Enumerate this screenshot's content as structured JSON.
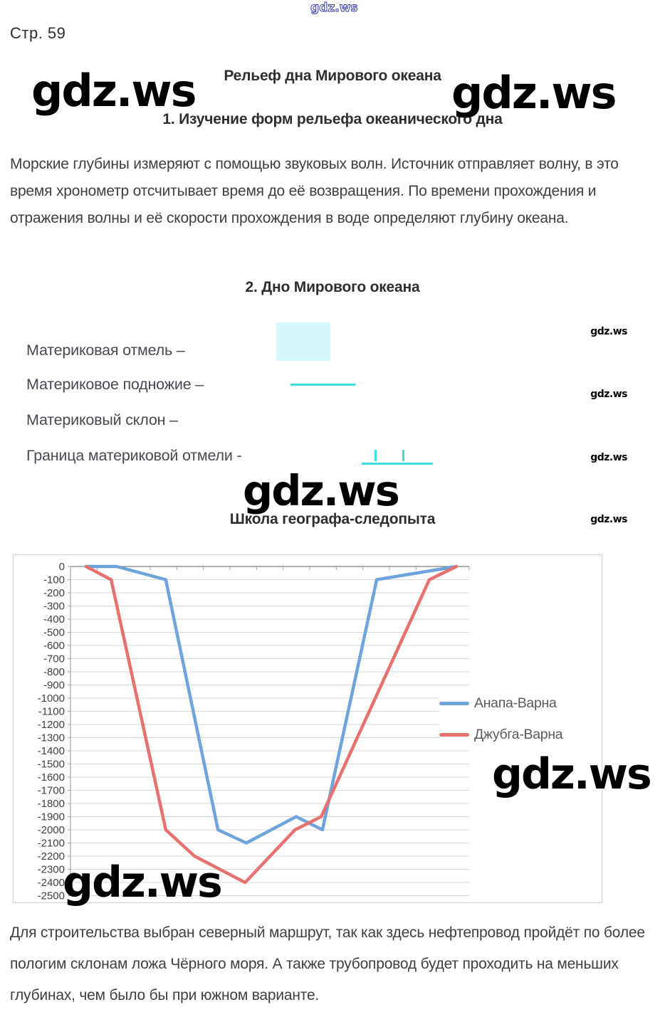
{
  "watermark": {
    "text": "gdz.ws"
  },
  "page": {
    "number_label": "Стр. 59"
  },
  "headings": {
    "title": "Рельеф дна Мирового океана",
    "section1": "1. Изучение форм рельефа океанического дна",
    "section2": "2. Дно Мирового океана",
    "school": "Школа географа-следопыта"
  },
  "intro_paragraph": "Морские глубины измеряют с помощью звуковых волн. Источник отправляет волну, в это время хронометр отсчитывает время до её возвращения. По времени прохождения и отражения волны и её скорости прохождения в воде определяют глубину океана.",
  "ocean_floor_legend": {
    "items": [
      {
        "label": "Материковая отмель –",
        "symbol": "filled-rect"
      },
      {
        "label": "Материковое подножие –",
        "symbol": "solid-line"
      },
      {
        "label": "Материковый склон –",
        "symbol": "none"
      },
      {
        "label": "Граница материковой отмели -",
        "symbol": "line-with-up-ticks"
      }
    ],
    "symbol_colors": {
      "fill": "#d7f6f8",
      "line": "#3edde2"
    }
  },
  "chart_data": {
    "type": "line",
    "title": "",
    "xlabel": "",
    "ylabel": "",
    "ylim": [
      -2500,
      0
    ],
    "yticks": [
      0,
      -100,
      -200,
      -300,
      -400,
      -500,
      -600,
      -700,
      -800,
      -900,
      -1000,
      -1100,
      -1200,
      -1300,
      -1400,
      -1500,
      -1600,
      -1700,
      -1800,
      -1900,
      -2000,
      -2100,
      -2200,
      -2300,
      -2400,
      -2500
    ],
    "x_axis_labels_visible": false,
    "x_unit": "relative distance along route, percent (no tick labels shown)",
    "grid": true,
    "legend_position": "middle-right",
    "series": [
      {
        "name": "Анапа-Варна",
        "color": "#6fa3dc",
        "points": [
          [
            3.9,
            0
          ],
          [
            11.6,
            0
          ],
          [
            23.9,
            -100
          ],
          [
            37.0,
            -2000
          ],
          [
            44.1,
            -2100
          ],
          [
            56.6,
            -1900
          ],
          [
            63.2,
            -2000
          ],
          [
            76.8,
            -100
          ],
          [
            96.8,
            0
          ]
        ]
      },
      {
        "name": "Джубга-Варна",
        "color": "#e8706e",
        "points": [
          [
            3.9,
            0
          ],
          [
            10.2,
            -100
          ],
          [
            23.9,
            -2000
          ],
          [
            31.1,
            -2200
          ],
          [
            43.8,
            -2400
          ],
          [
            56.3,
            -2000
          ],
          [
            62.9,
            -1900
          ],
          [
            90.0,
            -100
          ],
          [
            96.8,
            0
          ]
        ]
      }
    ]
  },
  "conclusion_paragraph": "Для строительства выбран северный маршрут, так как здесь нефтепровод пройдёт по более пологим склонам ложа Чёрного моря. А также трубопровод будет проходить на меньших глубинах, чем было бы при южном варианте."
}
